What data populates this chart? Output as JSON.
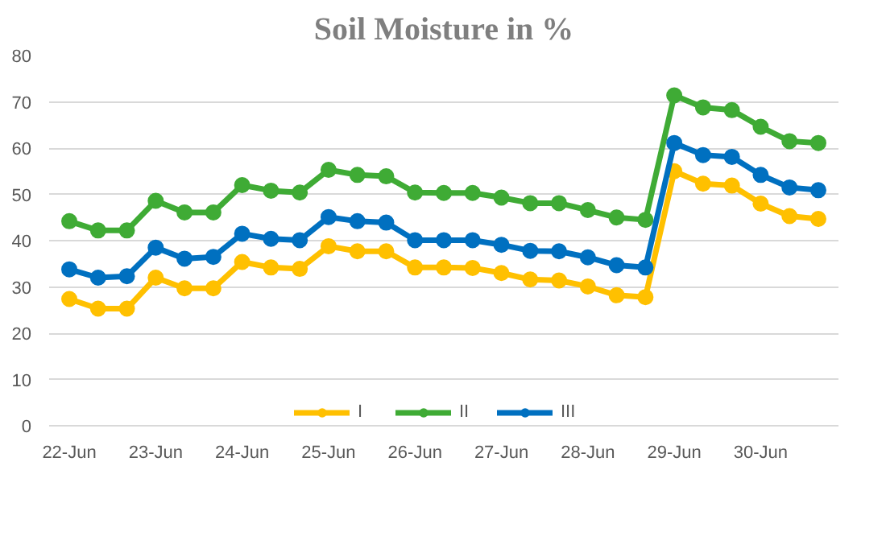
{
  "chart_data": {
    "type": "line",
    "title": "Soil Moisture in %",
    "categories": [
      "22-Jun",
      null,
      null,
      "23-Jun",
      null,
      null,
      "24-Jun",
      null,
      null,
      "25-Jun",
      null,
      null,
      "26-Jun",
      null,
      null,
      "27-Jun",
      null,
      null,
      "28-Jun",
      null,
      null,
      "29-Jun",
      null,
      null,
      "30-Jun",
      null,
      null
    ],
    "series": [
      {
        "name": "I",
        "color": "#ffc000",
        "values": [
          27.4,
          25.3,
          25.3,
          32.0,
          29.7,
          29.7,
          35.4,
          34.2,
          33.9,
          38.8,
          37.7,
          37.7,
          34.2,
          34.2,
          34.1,
          33.0,
          31.6,
          31.4,
          30.1,
          28.2,
          27.8,
          55.0,
          52.3,
          51.9,
          48.0,
          45.3,
          44.7
        ]
      },
      {
        "name": "II",
        "color": "#3fab35",
        "values": [
          44.2,
          42.2,
          42.2,
          48.6,
          46.1,
          46.1,
          52.0,
          50.8,
          50.4,
          55.3,
          54.2,
          53.9,
          50.4,
          50.3,
          50.3,
          49.3,
          48.1,
          48.1,
          46.6,
          45.0,
          44.5,
          71.4,
          68.8,
          68.2,
          64.6,
          61.5,
          61.1
        ]
      },
      {
        "name": "III",
        "color": "#0070c0",
        "values": [
          33.8,
          32.0,
          32.3,
          38.5,
          36.1,
          36.5,
          41.5,
          40.4,
          40.1,
          45.1,
          44.2,
          43.9,
          40.1,
          40.1,
          40.1,
          39.1,
          37.8,
          37.7,
          36.4,
          34.7,
          34.2,
          61.1,
          58.5,
          58.1,
          54.2,
          51.5,
          50.9
        ]
      }
    ],
    "ylim": [
      0,
      80
    ],
    "yticks": [
      0,
      10,
      20,
      30,
      40,
      50,
      60,
      70,
      80
    ],
    "grid": "y",
    "legend": "bottom",
    "marker": "circle",
    "line_style": "solid"
  }
}
